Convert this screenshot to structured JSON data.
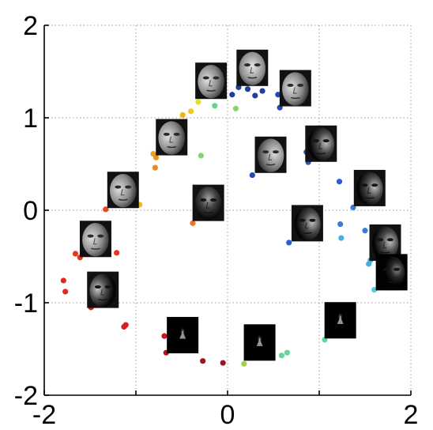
{
  "chart_data": {
    "type": "scatter",
    "title": "",
    "xlabel": "",
    "ylabel": "",
    "xlim": [
      -2,
      2
    ],
    "ylim": [
      -2,
      2
    ],
    "grid": "dotted",
    "x_ticks": [
      "-2",
      "0",
      "2"
    ],
    "y_ticks": [
      "2",
      "1",
      "0",
      "-1",
      "-2"
    ],
    "points": [
      {
        "x": 0.05,
        "y": 1.25,
        "color": "#1f3f9e"
      },
      {
        "x": 0.12,
        "y": 1.33,
        "color": "#1f3f9e"
      },
      {
        "x": 0.22,
        "y": 1.31,
        "color": "#1f3f9e"
      },
      {
        "x": 0.3,
        "y": 1.24,
        "color": "#1f3f9e"
      },
      {
        "x": 0.38,
        "y": 1.29,
        "color": "#1f3f9e"
      },
      {
        "x": 0.55,
        "y": 1.25,
        "color": "#2648b0"
      },
      {
        "x": 0.57,
        "y": 1.11,
        "color": "#2648b0"
      },
      {
        "x": 0.27,
        "y": 0.38,
        "color": "#2648b0"
      },
      {
        "x": 0.86,
        "y": 0.63,
        "color": "#2a55c0"
      },
      {
        "x": 0.88,
        "y": 0.52,
        "color": "#2a55c0"
      },
      {
        "x": 1.22,
        "y": 0.31,
        "color": "#2a5ec8"
      },
      {
        "x": 0.67,
        "y": -0.35,
        "color": "#2a5ec8"
      },
      {
        "x": 1.23,
        "y": -0.15,
        "color": "#3a7ad8"
      },
      {
        "x": 1.37,
        "y": 0.03,
        "color": "#3a7ad8"
      },
      {
        "x": 1.5,
        "y": -0.22,
        "color": "#3a7ad8"
      },
      {
        "x": 1.24,
        "y": -0.3,
        "color": "#45b0e0"
      },
      {
        "x": 1.54,
        "y": -0.58,
        "color": "#45b0e0"
      },
      {
        "x": 1.56,
        "y": -0.54,
        "color": "#45b0e0"
      },
      {
        "x": 1.6,
        "y": -0.86,
        "color": "#5ac8e8"
      },
      {
        "x": 1.06,
        "y": -1.4,
        "color": "#66d49c"
      },
      {
        "x": 0.65,
        "y": -1.54,
        "color": "#66d49c"
      },
      {
        "x": 0.59,
        "y": -1.57,
        "color": "#66d49c"
      },
      {
        "x": 0.18,
        "y": -1.66,
        "color": "#9ad64a"
      },
      {
        "x": -0.14,
        "y": 1.13,
        "color": "#66d48a"
      },
      {
        "x": 0.09,
        "y": 1.1,
        "color": "#80d86a"
      },
      {
        "x": -0.29,
        "y": 0.59,
        "color": "#80d86a"
      },
      {
        "x": -0.32,
        "y": 1.17,
        "color": "#e8e21a"
      },
      {
        "x": -0.4,
        "y": 1.07,
        "color": "#f0c818"
      },
      {
        "x": -0.49,
        "y": 1.03,
        "color": "#f0b418"
      },
      {
        "x": -0.81,
        "y": 0.61,
        "color": "#f0a020"
      },
      {
        "x": -0.78,
        "y": 0.57,
        "color": "#f09020"
      },
      {
        "x": -0.79,
        "y": 0.46,
        "color": "#f08820"
      },
      {
        "x": -0.96,
        "y": 0.06,
        "color": "#f0b818"
      },
      {
        "x": -0.38,
        "y": -0.14,
        "color": "#f07820"
      },
      {
        "x": -1.33,
        "y": 0.01,
        "color": "#e84a1e"
      },
      {
        "x": -1.66,
        "y": -0.47,
        "color": "#e03a1e"
      },
      {
        "x": -1.61,
        "y": -0.51,
        "color": "#e03a1e"
      },
      {
        "x": -1.21,
        "y": -0.46,
        "color": "#e03a1e"
      },
      {
        "x": -1.79,
        "y": -0.76,
        "color": "#e02a1e"
      },
      {
        "x": -1.77,
        "y": -0.88,
        "color": "#e02a1e"
      },
      {
        "x": -1.49,
        "y": -1.05,
        "color": "#d8201e"
      },
      {
        "x": -1.13,
        "y": -1.26,
        "color": "#d8201e"
      },
      {
        "x": -1.11,
        "y": -1.24,
        "color": "#d8201e"
      },
      {
        "x": -0.69,
        "y": -1.36,
        "color": "#c0181e"
      },
      {
        "x": -0.67,
        "y": -1.54,
        "color": "#b0161e"
      },
      {
        "x": -0.27,
        "y": -1.63,
        "color": "#a0141e"
      },
      {
        "x": -0.05,
        "y": -1.65,
        "color": "#a0141e"
      }
    ],
    "faces": [
      {
        "x": -0.18,
        "y": 1.4,
        "shade": "lit",
        "light": "left"
      },
      {
        "x": 0.27,
        "y": 1.54,
        "shade": "lit",
        "light": "front"
      },
      {
        "x": 0.74,
        "y": 1.32,
        "shade": "lit",
        "light": "left"
      },
      {
        "x": -0.61,
        "y": 0.79,
        "shade": "lit",
        "light": "left"
      },
      {
        "x": 0.47,
        "y": 0.6,
        "shade": "lit",
        "light": "right"
      },
      {
        "x": 1.02,
        "y": 0.72,
        "shade": "half",
        "light": "right"
      },
      {
        "x": -1.14,
        "y": 0.22,
        "shade": "lit",
        "light": "left"
      },
      {
        "x": -0.21,
        "y": 0.08,
        "shade": "dim",
        "light": "top"
      },
      {
        "x": 1.55,
        "y": 0.24,
        "shade": "half",
        "light": "right"
      },
      {
        "x": 0.87,
        "y": -0.14,
        "shade": "half",
        "light": "right"
      },
      {
        "x": -1.44,
        "y": -0.31,
        "shade": "lit",
        "light": "left"
      },
      {
        "x": 1.72,
        "y": -0.35,
        "shade": "half",
        "light": "right"
      },
      {
        "x": -1.36,
        "y": -0.86,
        "shade": "half",
        "light": "left"
      },
      {
        "x": 1.79,
        "y": -0.67,
        "shade": "dark",
        "light": "right"
      },
      {
        "x": 1.23,
        "y": -1.19,
        "shade": "dark",
        "light": "top"
      },
      {
        "x": -0.49,
        "y": -1.35,
        "shade": "dark",
        "light": "top"
      },
      {
        "x": 0.35,
        "y": -1.43,
        "shade": "dark",
        "light": "top"
      }
    ]
  }
}
